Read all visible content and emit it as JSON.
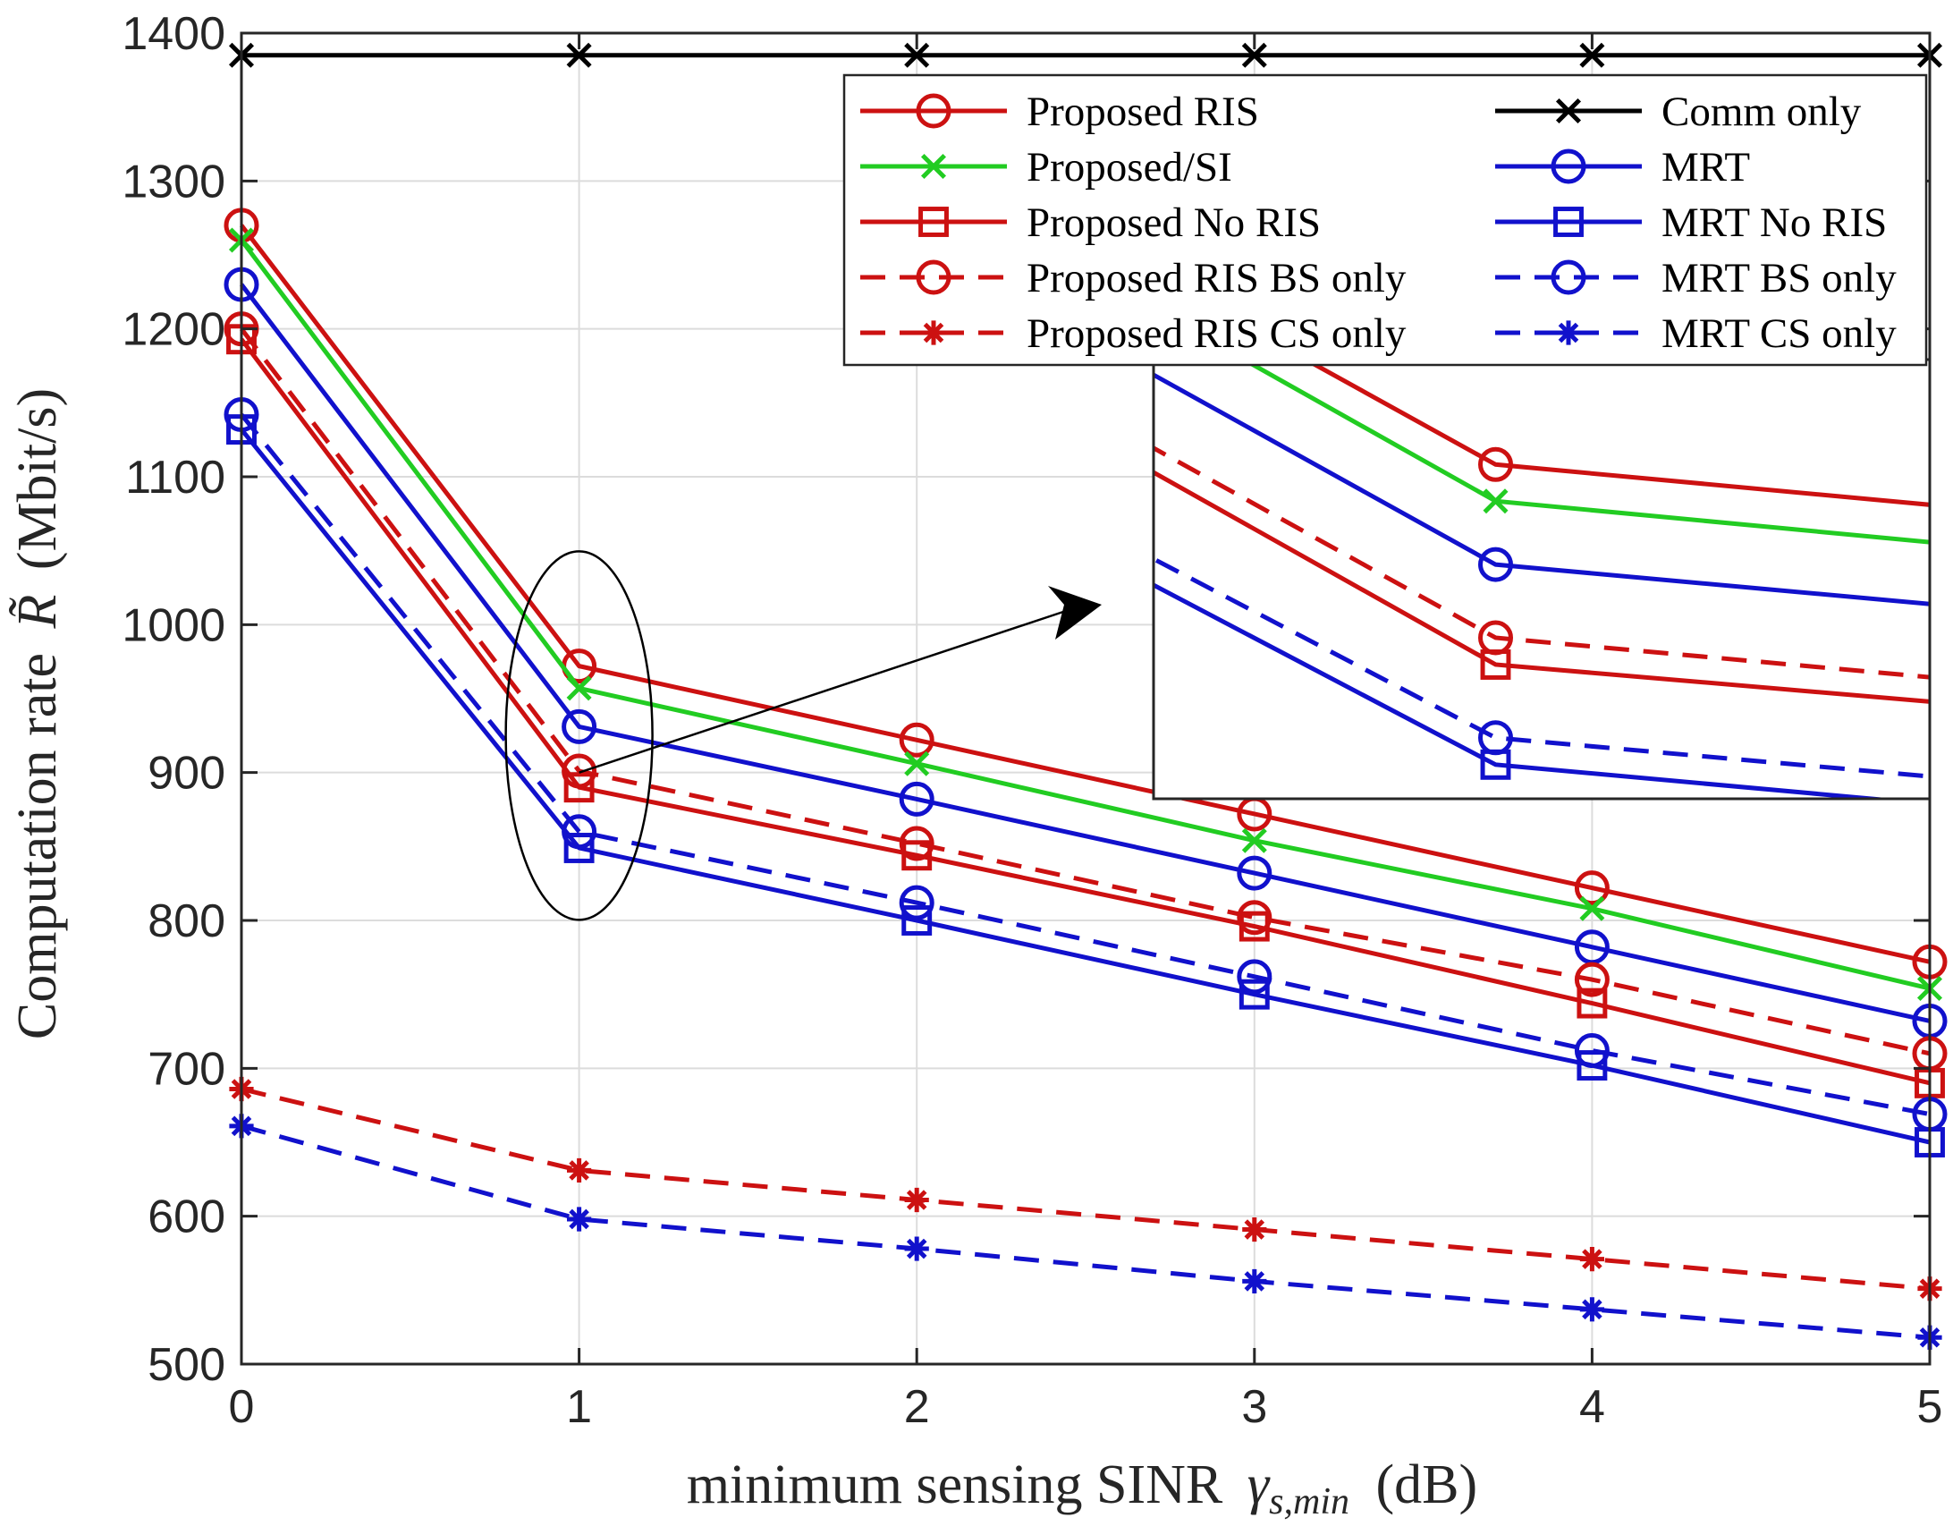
{
  "chart_data": {
    "type": "line",
    "title": "",
    "xlabel": "minimum sensing SINR",
    "xlabel_symbol": "γ",
    "xlabel_subscript": "s,min",
    "xlabel_unit": "(dB)",
    "ylabel": "Computation rate",
    "ylabel_symbol": "R̃",
    "ylabel_unit": "(Mbit/s)",
    "xlim": [
      0,
      5
    ],
    "ylim": [
      500,
      1400
    ],
    "xticks": [
      0,
      1,
      2,
      3,
      4,
      5
    ],
    "yticks": [
      500,
      600,
      700,
      800,
      900,
      1000,
      1100,
      1200,
      1300,
      1400
    ],
    "grid": true,
    "legend_position": "top-right",
    "x": [
      0,
      1,
      2,
      3,
      4,
      5
    ],
    "series": [
      {
        "name": "Proposed RIS",
        "color": "#cc1111",
        "dash": "solid",
        "marker": "circle",
        "values": [
          1270,
          972,
          922,
          872,
          822,
          772
        ]
      },
      {
        "name": "Comm only",
        "color": "#000000",
        "dash": "solid",
        "marker": "x",
        "values": [
          1385,
          1385,
          1385,
          1385,
          1385,
          1385
        ]
      },
      {
        "name": "Proposed/SI",
        "color": "#22cc22",
        "dash": "solid",
        "marker": "x",
        "values": [
          1260,
          957,
          906,
          854,
          808,
          754
        ]
      },
      {
        "name": "MRT",
        "color": "#1111cc",
        "dash": "solid",
        "marker": "circle",
        "values": [
          1230,
          931,
          882,
          832,
          782,
          732
        ]
      },
      {
        "name": "Proposed No RIS",
        "color": "#cc1111",
        "dash": "solid",
        "marker": "square",
        "values": [
          1193,
          890,
          844,
          796,
          744,
          690
        ]
      },
      {
        "name": "MRT No RIS",
        "color": "#1111cc",
        "dash": "solid",
        "marker": "square",
        "values": [
          1132,
          849,
          800,
          750,
          702,
          650
        ]
      },
      {
        "name": "Proposed RIS BS only",
        "color": "#cc1111",
        "dash": "dashed",
        "marker": "circle",
        "values": [
          1200,
          901,
          852,
          802,
          760,
          710
        ]
      },
      {
        "name": "MRT BS only",
        "color": "#1111cc",
        "dash": "dashed",
        "marker": "circle",
        "values": [
          1142,
          860,
          812,
          762,
          712,
          669
        ]
      },
      {
        "name": "Proposed RIS CS only",
        "color": "#cc1111",
        "dash": "dashed",
        "marker": "asterisk",
        "values": [
          686,
          631,
          611,
          591,
          571,
          551
        ]
      },
      {
        "name": "MRT CS only",
        "color": "#1111cc",
        "dash": "dashed",
        "marker": "asterisk",
        "values": [
          661,
          598,
          578,
          556,
          537,
          518
        ]
      }
    ],
    "legend_layout": [
      [
        "Proposed RIS",
        "Comm only"
      ],
      [
        "Proposed/SI",
        "MRT"
      ],
      [
        "Proposed No RIS",
        "MRT No RIS"
      ],
      [
        "Proposed RIS BS only",
        "MRT BS only"
      ],
      [
        "Proposed RIS CS only",
        "MRT CS only"
      ]
    ],
    "inset": {
      "description_source": "zoom of region around x = 1",
      "xlim": [
        0.74,
        1.33
      ],
      "ylim": [
        835,
        1015
      ]
    }
  }
}
